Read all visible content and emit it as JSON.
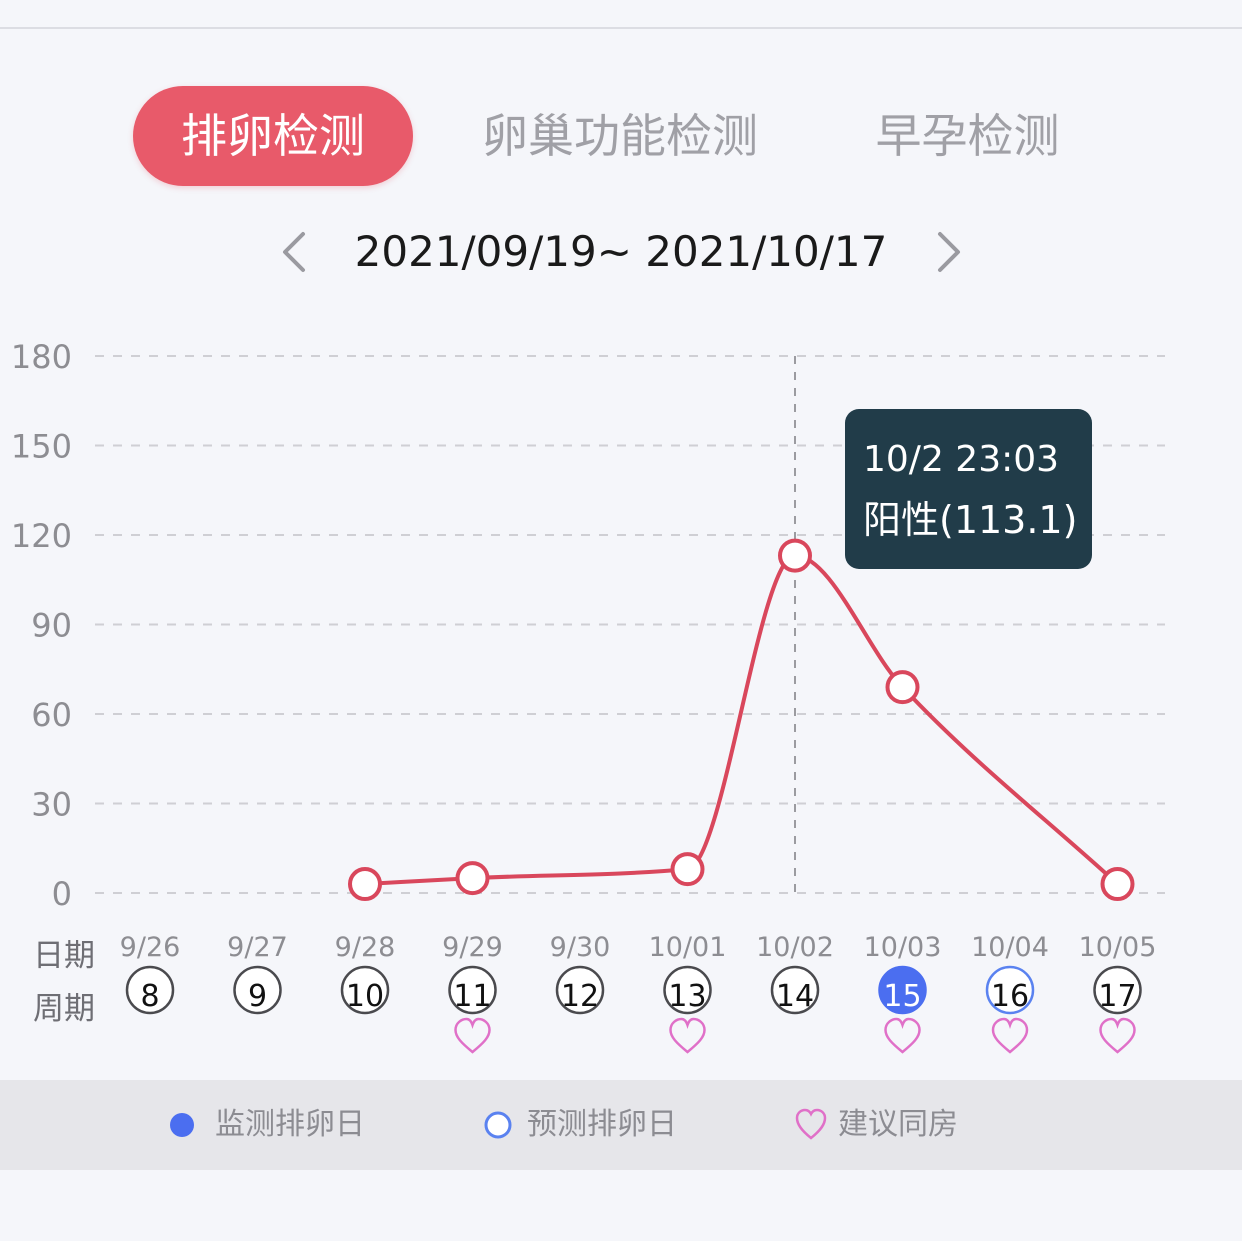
{
  "tabs": [
    {
      "label": "排卵检测",
      "active": true
    },
    {
      "label": "卵巢功能检测",
      "active": false
    },
    {
      "label": "早孕检测",
      "active": false
    }
  ],
  "date_range": "2021/09/19~ 2021/10/17",
  "row_labels": {
    "date": "日期",
    "cycle": "周期"
  },
  "tooltip": {
    "time": "10/2 23:03",
    "result": "阳性(113.1)"
  },
  "legend": [
    {
      "label": "监测排卵日",
      "icon": "filled-blue-dot-icon"
    },
    {
      "label": "预测排卵日",
      "icon": "hollow-blue-ring-icon"
    },
    {
      "label": "建议同房",
      "icon": "pink-heart-icon"
    }
  ],
  "colors": {
    "accent": "#e85a6a",
    "line": "#d9475c",
    "tooltip_bg": "#213c49",
    "monitored_day": "#4b6ef0",
    "heart": "#e070c8"
  },
  "chart_data": {
    "type": "line",
    "title": "",
    "xlabel": "",
    "ylabel": "",
    "ylim": [
      0,
      180
    ],
    "yticks": [
      0,
      30,
      60,
      90,
      120,
      150,
      180
    ],
    "grid": true,
    "categories": [
      "9/26",
      "9/27",
      "9/28",
      "9/29",
      "9/30",
      "10/01",
      "10/02",
      "10/03",
      "10/04",
      "10/05"
    ],
    "cycle_days": [
      8,
      9,
      10,
      11,
      12,
      13,
      14,
      15,
      16,
      17
    ],
    "monitored_ovulation": [
      false,
      false,
      false,
      false,
      false,
      false,
      false,
      true,
      false,
      false
    ],
    "predicted_ovulation": [
      false,
      false,
      false,
      false,
      false,
      false,
      false,
      false,
      true,
      false
    ],
    "suggested_intercourse": [
      false,
      false,
      false,
      true,
      false,
      true,
      false,
      true,
      true,
      true
    ],
    "series": [
      {
        "values": [
          null,
          null,
          3,
          5,
          null,
          8,
          113.1,
          69,
          null,
          3
        ]
      }
    ],
    "highlight_category": "10/02"
  }
}
